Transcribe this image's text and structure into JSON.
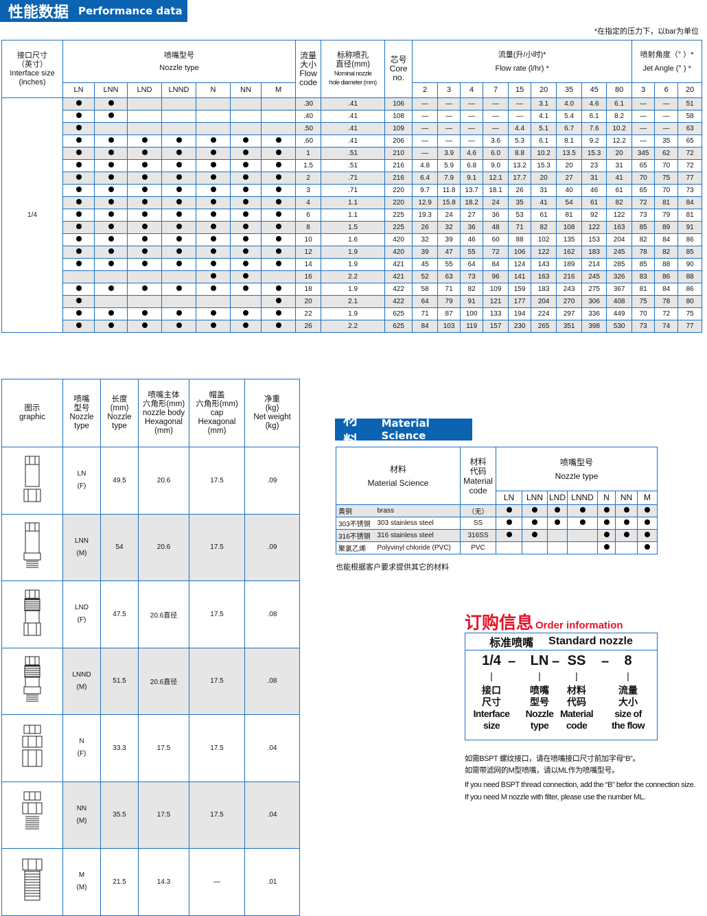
{
  "performance": {
    "title_cn": "性能数据",
    "title_en": "Performance data",
    "note": "*在指定的压力下，以bar为单位",
    "headers": {
      "interface_cn": "接口尺寸\n（英寸）",
      "interface_en": "Interface size\n(inches)",
      "nozzle_cn": "喷嘴型号",
      "nozzle_en": "Nozzle type",
      "flowcode": "流量\n大小\nFlow\ncode",
      "nominal_cn": "标称喷孔\n直径(mm)",
      "nominal_en": "Nominal nozzle\nhole diameter (mm)",
      "core": "芯号\nCore\nno.",
      "flowrate_cn": "流量(升/小时)*",
      "flowrate_en": "Flow rate (l/hr) *",
      "angle_cn": "喷射角度（°  ）*",
      "angle_en": "Jet Angle (°  ) *"
    },
    "nozzle_types": [
      "LN",
      "LNN",
      "LND",
      "LNND",
      "N",
      "NN",
      "M"
    ],
    "pressures_flow": [
      "2",
      "3",
      "4",
      "7",
      "15",
      "20",
      "35",
      "45",
      "80"
    ],
    "pressures_angle": [
      "3",
      "6",
      "20"
    ],
    "interface_size": "1/4",
    "rows": [
      {
        "types": [
          1,
          1,
          0,
          0,
          0,
          0,
          0
        ],
        "code": ".30",
        "nominal": ".41",
        "core": "106",
        "flow": [
          "—",
          "—",
          "—",
          "—",
          "—",
          "3.1",
          "4.0",
          "4.6",
          "6.1"
        ],
        "angle": [
          "—",
          "—",
          "51"
        ]
      },
      {
        "types": [
          1,
          1,
          0,
          0,
          0,
          0,
          0
        ],
        "code": ".40",
        "nominal": ".41",
        "core": "108",
        "flow": [
          "—",
          "—",
          "—",
          "—",
          "—",
          "4.1",
          "5.4",
          "6.1",
          "8.2"
        ],
        "angle": [
          "—",
          "—",
          "58"
        ]
      },
      {
        "types": [
          1,
          0,
          0,
          0,
          0,
          0,
          0
        ],
        "code": ".50",
        "nominal": ".41",
        "core": "109",
        "flow": [
          "—",
          "—",
          "—",
          "—",
          "4.4",
          "5.1",
          "6.7",
          "7.6",
          "10.2"
        ],
        "angle": [
          "—",
          "—",
          "63"
        ]
      },
      {
        "types": [
          1,
          1,
          1,
          1,
          1,
          1,
          1
        ],
        "code": ".60",
        "nominal": ".41",
        "core": "206",
        "flow": [
          "—",
          "—",
          "—",
          "3.6",
          "5.3",
          "6.1",
          "8.1",
          "9.2",
          "12.2"
        ],
        "angle": [
          "—",
          "35",
          "65"
        ]
      },
      {
        "types": [
          1,
          1,
          1,
          1,
          1,
          1,
          1
        ],
        "code": "1",
        "nominal": ".51",
        "core": "210",
        "flow": [
          "—",
          "3.9",
          "4.6",
          "6.0",
          "8.8",
          "10.2",
          "13.5",
          "15.3",
          "20"
        ],
        "angle": [
          "345",
          "62",
          "72"
        ]
      },
      {
        "types": [
          1,
          1,
          1,
          1,
          1,
          1,
          1
        ],
        "code": "1.5",
        "nominal": ".51",
        "core": "216",
        "flow": [
          "4.8",
          "5.9",
          "6.8",
          "9.0",
          "13.2",
          "15.3",
          "20",
          "23",
          "31"
        ],
        "angle": [
          "65",
          "70",
          "72"
        ]
      },
      {
        "types": [
          1,
          1,
          1,
          1,
          1,
          1,
          1
        ],
        "code": "2",
        "nominal": ".71",
        "core": "216",
        "flow": [
          "6.4",
          "7.9",
          "9.1",
          "12.1",
          "17.7",
          "20",
          "27",
          "31",
          "41"
        ],
        "angle": [
          "70",
          "75",
          "77"
        ]
      },
      {
        "types": [
          1,
          1,
          1,
          1,
          1,
          1,
          1
        ],
        "code": "3",
        "nominal": ".71",
        "core": "220",
        "flow": [
          "9.7",
          "11.8",
          "13.7",
          "18.1",
          "26",
          "31",
          "40",
          "46",
          "61"
        ],
        "angle": [
          "65",
          "70",
          "73"
        ]
      },
      {
        "types": [
          1,
          1,
          1,
          1,
          1,
          1,
          1
        ],
        "code": "4",
        "nominal": "1.1",
        "core": "220",
        "flow": [
          "12.9",
          "15.8",
          "18.2",
          "24",
          "35",
          "41",
          "54",
          "61",
          "82"
        ],
        "angle": [
          "72",
          "81",
          "84"
        ]
      },
      {
        "types": [
          1,
          1,
          1,
          1,
          1,
          1,
          1
        ],
        "code": "6",
        "nominal": "1.1",
        "core": "225",
        "flow": [
          "19.3",
          "24",
          "27",
          "36",
          "53",
          "61",
          "81",
          "92",
          "122"
        ],
        "angle": [
          "73",
          "79",
          "81"
        ]
      },
      {
        "types": [
          1,
          1,
          1,
          1,
          1,
          1,
          1
        ],
        "code": "8",
        "nominal": "1.5",
        "core": "225",
        "flow": [
          "26",
          "32",
          "36",
          "48",
          "71",
          "82",
          "108",
          "122",
          "163"
        ],
        "angle": [
          "85",
          "89",
          "91"
        ]
      },
      {
        "types": [
          1,
          1,
          1,
          1,
          1,
          1,
          1
        ],
        "code": "10",
        "nominal": "1.6",
        "core": "420",
        "flow": [
          "32",
          "39",
          "46",
          "60",
          "88",
          "102",
          "135",
          "153",
          "204"
        ],
        "angle": [
          "82",
          "84",
          "86"
        ]
      },
      {
        "types": [
          1,
          1,
          1,
          1,
          1,
          1,
          1
        ],
        "code": "12",
        "nominal": "1.9",
        "core": "420",
        "flow": [
          "39",
          "47",
          "55",
          "72",
          "106",
          "122",
          "162",
          "183",
          "245"
        ],
        "angle": [
          "78",
          "82",
          "85"
        ]
      },
      {
        "types": [
          1,
          1,
          1,
          1,
          1,
          1,
          1
        ],
        "code": "14",
        "nominal": "1.9",
        "core": "421",
        "flow": [
          "45",
          "55",
          "64",
          "84",
          "124",
          "143",
          "189",
          "214",
          "285"
        ],
        "angle": [
          "85",
          "88",
          "90"
        ]
      },
      {
        "types": [
          0,
          0,
          0,
          0,
          1,
          1,
          0
        ],
        "code": "16",
        "nominal": "2.2",
        "core": "421",
        "flow": [
          "52",
          "63",
          "73",
          "96",
          "141",
          "163",
          "216",
          "245",
          "326"
        ],
        "angle": [
          "83",
          "86",
          "88"
        ]
      },
      {
        "types": [
          1,
          1,
          1,
          1,
          1,
          1,
          1
        ],
        "code": "18",
        "nominal": "1.9",
        "core": "422",
        "flow": [
          "58",
          "71",
          "82",
          "109",
          "159",
          "183",
          "243",
          "275",
          "367"
        ],
        "angle": [
          "81",
          "84",
          "86"
        ]
      },
      {
        "types": [
          1,
          0,
          0,
          0,
          0,
          0,
          1
        ],
        "code": "20",
        "nominal": "2.1",
        "core": "422",
        "flow": [
          "64",
          "79",
          "91",
          "121",
          "177",
          "204",
          "270",
          "306",
          "408"
        ],
        "angle": [
          "75",
          "78",
          "80"
        ]
      },
      {
        "types": [
          1,
          1,
          1,
          1,
          1,
          1,
          1
        ],
        "code": "22",
        "nominal": "1.9",
        "core": "625",
        "flow": [
          "71",
          "87",
          "100",
          "133",
          "194",
          "224",
          "297",
          "336",
          "449"
        ],
        "angle": [
          "70",
          "72",
          "75"
        ]
      },
      {
        "types": [
          1,
          1,
          1,
          1,
          1,
          1,
          1
        ],
        "code": "26",
        "nominal": "2.2",
        "core": "625",
        "flow": [
          "84",
          "103",
          "119",
          "157",
          "230",
          "265",
          "351",
          "398",
          "530"
        ],
        "angle": [
          "73",
          "74",
          "77"
        ]
      }
    ]
  },
  "dimensions": {
    "headers": [
      "图示\ngraphic",
      "喷嘴\n型号\nNozzle\ntype",
      "长度\n(mm)\nNozzle\ntype",
      "喷嘴主体\n六角形(mm)\nnozzle body\nHexagonal\n(mm)",
      "帽盖\n六角形(mm)\ncap\nHexagonal\n(mm)",
      "净重\n(kg)\nNet weight\n(kg)"
    ],
    "rows": [
      {
        "icon": "ln-nozzle-drawing",
        "type": "LN",
        "gender": "(F)",
        "length": "49.5",
        "body": "20.6",
        "cap": "17.5",
        "weight": ".09"
      },
      {
        "icon": "lnn-nozzle-drawing",
        "type": "LNN",
        "gender": "(M)",
        "length": "54",
        "body": "20.6",
        "cap": "17.5",
        "weight": ".09"
      },
      {
        "icon": "lnd-nozzle-drawing",
        "type": "LND",
        "gender": "(F)",
        "length": "47.5",
        "body": "20.6直径",
        "cap": "17.5",
        "weight": ".08"
      },
      {
        "icon": "lnnd-nozzle-drawing",
        "type": "LNND",
        "gender": "(M)",
        "length": "51.5",
        "body": "20.6直径",
        "cap": "17.5",
        "weight": ".08"
      },
      {
        "icon": "n-nozzle-drawing",
        "type": "N",
        "gender": "(F)",
        "length": "33.3",
        "body": "17.5",
        "cap": "17.5",
        "weight": ".04"
      },
      {
        "icon": "nn-nozzle-drawing",
        "type": "NN",
        "gender": "(M)",
        "length": "35.5",
        "body": "17.5",
        "cap": "17.5",
        "weight": ".04"
      },
      {
        "icon": "m-nozzle-drawing",
        "type": "M",
        "gender": "(M)",
        "length": "21.5",
        "body": "14.3",
        "cap": "—",
        "weight": ".01"
      }
    ]
  },
  "material": {
    "title_cn": "材料",
    "title_en": "Material Science",
    "header_material": "材料\nMaterial Science",
    "header_code": "材料\n代码\nMaterial\ncode",
    "header_nozzle": "喷嘴型号\nNozzle type",
    "nozzle_types": [
      "LN",
      "LNN",
      "LND",
      "LNND",
      "N",
      "NN",
      "M"
    ],
    "rows": [
      {
        "cn": "黄铜",
        "en": "brass",
        "code": "（无）",
        "types": [
          1,
          1,
          1,
          1,
          1,
          1,
          1
        ]
      },
      {
        "cn": "303不锈钢",
        "en": "303 stainless steel",
        "code": "SS",
        "types": [
          1,
          1,
          1,
          1,
          1,
          1,
          1
        ]
      },
      {
        "cn": "316不锈钢",
        "en": "316 stainless steel",
        "code": "316SS",
        "types": [
          1,
          1,
          0,
          0,
          1,
          1,
          1
        ]
      },
      {
        "cn": "聚氯乙烯",
        "en": "Polyvinyl chloride (PVC)",
        "code": "PVC",
        "types": [
          0,
          0,
          0,
          0,
          1,
          0,
          1
        ]
      }
    ],
    "note": "也能根据客户要求提供其它的材料"
  },
  "order": {
    "title_cn": "订购信息",
    "title_en": "Order information",
    "header_cn": "标准喷嘴",
    "header_en": "Standard nozzle",
    "parts": [
      {
        "code": "1/4",
        "label_cn": "接口\n尺寸",
        "label_en": "Interface\nsize"
      },
      {
        "code": "LN",
        "label_cn": "喷嘴\n型号",
        "label_en": "Nozzle\ntype"
      },
      {
        "code": "SS",
        "label_cn": "材料\n代码",
        "label_en": "Material\ncode"
      },
      {
        "code": "8",
        "label_cn": "流量\n大小",
        "label_en": "size of\nthe flow"
      }
    ],
    "separator": "–",
    "notes": [
      "如需BSPT 螺纹接口，请在喷嘴接口尺寸前加字母“B”。",
      "如需带滤网的M型喷嘴，请以ML作为喷嘴型号。",
      "If you need BSPT thread connection, add the “B” befor the connection size.",
      "If you need M nozzle with filter, please use the number ML."
    ]
  },
  "colors": {
    "brand_blue": "#0b63b2",
    "border_blue": "#1a6fc0",
    "order_red": "#e3142a",
    "row_gray": "#e6e6e6"
  }
}
